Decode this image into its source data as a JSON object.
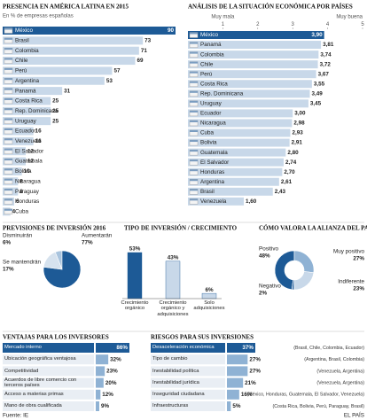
{
  "chart_data": [
    {
      "type": "bar",
      "orientation": "horizontal",
      "title": "PRESENCIA EN AMÉRICA LATINA EN 2015",
      "subtitle": "En % de empresas españolas",
      "categories": [
        "México",
        "Brasil",
        "Colombia",
        "Chile",
        "Perú",
        "Argentina",
        "Panamá",
        "Costa Rica",
        "Rep. Dominicana",
        "Uruguay",
        "Ecuador",
        "Venezuela",
        "El Salvador",
        "Guatemala",
        "Bolivia",
        "Nicaragua",
        "Paraguay",
        "Honduras",
        "Cuba"
      ],
      "values": [
        90,
        73,
        71,
        69,
        57,
        53,
        31,
        25,
        25,
        25,
        16,
        16,
        12,
        12,
        10,
        8,
        8,
        6,
        4
      ],
      "colors": [
        "#1d5a96",
        "#c8d8e9",
        "#c8d8e9",
        "#c8d8e9",
        "#c8d8e9",
        "#c8d8e9",
        "#c8d8e9",
        "#c8d8e9",
        "#c8d8e9",
        "#c8d8e9",
        "#c8d8e9",
        "#c8d8e9",
        "#c8d8e9",
        "#c8d8e9",
        "#c8d8e9",
        "#c8d8e9",
        "#c8d8e9",
        "#c8d8e9",
        "#c8d8e9"
      ]
    },
    {
      "type": "bar",
      "orientation": "horizontal",
      "title": "ANÁLISIS DE LA SITUACIÓN ECONÓMICA POR PAÍSES",
      "axis_labels": [
        "Muy mala",
        "Muy buena"
      ],
      "categories": [
        "México",
        "Panamá",
        "Colombia",
        "Chile",
        "Perú",
        "Costa Rica",
        "Rep. Dominicana",
        "Uruguay",
        "Ecuador",
        "Nicaragua",
        "Cuba",
        "Bolivia",
        "Guatemala",
        "El Salvador",
        "Honduras",
        "Argentina",
        "Brasil",
        "Venezuela"
      ],
      "values": [
        3.9,
        3.81,
        3.74,
        3.72,
        3.67,
        3.55,
        3.49,
        3.45,
        3.0,
        2.98,
        2.93,
        2.91,
        2.8,
        2.74,
        2.7,
        2.61,
        2.43,
        1.6
      ],
      "value_labels": [
        "3,90",
        "3,81",
        "3,74",
        "3,72",
        "3,67",
        "3,55",
        "3,49",
        "3,45",
        "3,00",
        "2,98",
        "2,93",
        "2,91",
        "2,80",
        "2,74",
        "2,70",
        "2,61",
        "2,43",
        "1,60"
      ],
      "xlim": [
        0,
        5
      ],
      "xticks": [
        1,
        2,
        3,
        4,
        5
      ],
      "colors": [
        "#1d5a96",
        "#c8d8e9",
        "#c8d8e9",
        "#c8d8e9",
        "#c8d8e9",
        "#c8d8e9",
        "#c8d8e9",
        "#c8d8e9",
        "#c8d8e9",
        "#c8d8e9",
        "#c8d8e9",
        "#c8d8e9",
        "#c8d8e9",
        "#c8d8e9",
        "#c8d8e9",
        "#c8d8e9",
        "#c8d8e9",
        "#c8d8e9"
      ]
    },
    {
      "type": "pie",
      "title": "PREVISIONES DE INVERSIÓN 2016",
      "categories": [
        "Disminuirán",
        "Aumentarán",
        "Se mantendrán"
      ],
      "values": [
        6,
        77,
        17
      ],
      "value_labels": [
        "6%",
        "77%",
        "17%"
      ],
      "colors": [
        "#a9c4de",
        "#1d5a96",
        "#d6e2ee"
      ]
    },
    {
      "type": "bar",
      "orientation": "vertical",
      "title": "TIPO DE INVERSIÓN / CRECIMIENTO",
      "categories": [
        "Crecimiento orgánico",
        "Crecimiento orgánico y adquisiciones",
        "Solo adquisiciones"
      ],
      "values": [
        53,
        43,
        6
      ],
      "value_labels": [
        "53%",
        "43%",
        "6%"
      ],
      "colors": [
        "#1d5a96",
        "#c8d8e9",
        "#c8d8e9"
      ]
    },
    {
      "type": "pie",
      "donut": true,
      "title": "CÓMO VALORA LA ALIANZA DEL PACÍFICO",
      "categories": [
        "Positivo",
        "Muy positivo",
        "Indiferente",
        "Negativo"
      ],
      "values": [
        48,
        27,
        23,
        2
      ],
      "value_labels": [
        "48%",
        "27%",
        "23%",
        "2%"
      ],
      "colors": [
        "#1d5a96",
        "#8fb2d4",
        "#c8d8e9",
        "#4f7fb0"
      ]
    },
    {
      "type": "bar",
      "orientation": "horizontal",
      "title": "VENTAJAS PARA LOS INVERSORES",
      "categories": [
        "Mercado interno",
        "Ubicación geográfica ventajosa",
        "Competitividad",
        "Acuerdos de libre comercio con terceros países",
        "Acceso a materias primas",
        "Mano de obra cualificada"
      ],
      "values": [
        86,
        32,
        23,
        20,
        12,
        9
      ],
      "value_labels": [
        "86%",
        "32%",
        "23%",
        "20%",
        "12%",
        "9%"
      ],
      "colors": [
        "#1d5a96",
        "#8fb2d4",
        "#8fb2d4",
        "#8fb2d4",
        "#8fb2d4",
        "#8fb2d4"
      ]
    },
    {
      "type": "bar",
      "orientation": "horizontal",
      "title": "RIESGOS PARA SUS INVERSIONES",
      "categories": [
        "Desaceleración económica",
        "Tipo de cambio",
        "Inestabilidad política",
        "Inestabilidad jurídica",
        "Inseguridad ciudadana",
        "Infraestructuras"
      ],
      "values": [
        37,
        27,
        27,
        21,
        16,
        5
      ],
      "value_labels": [
        "37%",
        "27%",
        "27%",
        "21%",
        "16%",
        "5%"
      ],
      "annotations": [
        "(Brasil, Chile, Colombia, Ecuador)",
        "(Argentina, Brasil, Colombia)",
        "(Venezuela, Argentina)",
        "(Venezuela, Argentina)",
        "(México, Honduras, Guatemala, El Salvador, Venezuela)",
        "(Costa Rica, Bolivia, Perú, Paraguay, Brasil)"
      ],
      "colors": [
        "#1d5a96",
        "#8fb2d4",
        "#8fb2d4",
        "#8fb2d4",
        "#8fb2d4",
        "#8fb2d4"
      ]
    }
  ],
  "footer": {
    "source": "Fuente: IE",
    "credit": "EL PAÍS"
  }
}
